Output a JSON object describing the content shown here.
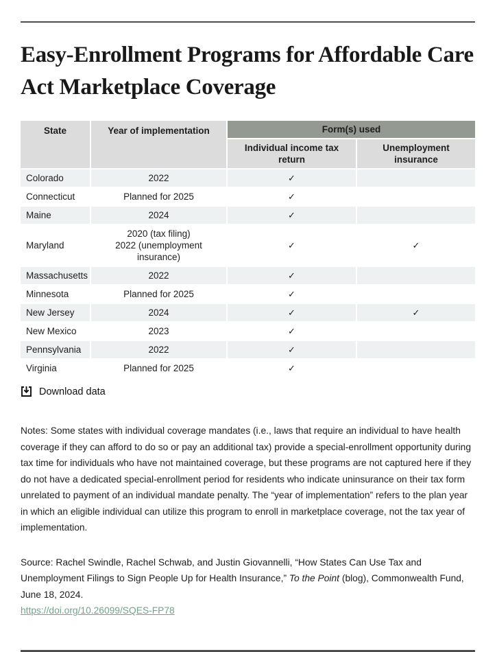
{
  "page": {
    "title": "Easy-Enrollment Programs for Affordable Care Act Marketplace Coverage"
  },
  "table": {
    "headers": {
      "state": "State",
      "year": "Year of implementation",
      "forms_used": "Form(s) used",
      "individual_tax": "Individual income tax return",
      "unemployment": "Unemployment insurance"
    },
    "check_glyph": "✓",
    "rows": [
      {
        "state": "Colorado",
        "year": "2022",
        "individual_tax": "✓",
        "unemployment": ""
      },
      {
        "state": "Connecticut",
        "year": "Planned for 2025",
        "individual_tax": "✓",
        "unemployment": ""
      },
      {
        "state": "Maine",
        "year": "2024",
        "individual_tax": "✓",
        "unemployment": ""
      },
      {
        "state": "Maryland",
        "year": "2020 (tax filing)\n2022 (unemployment insurance)",
        "individual_tax": "✓",
        "unemployment": "✓"
      },
      {
        "state": "Massachusetts",
        "year": "2022",
        "individual_tax": "✓",
        "unemployment": ""
      },
      {
        "state": "Minnesota",
        "year": "Planned for 2025",
        "individual_tax": "✓",
        "unemployment": ""
      },
      {
        "state": "New Jersey",
        "year": "2024",
        "individual_tax": "✓",
        "unemployment": "✓"
      },
      {
        "state": "New Mexico",
        "year": "2023",
        "individual_tax": "✓",
        "unemployment": ""
      },
      {
        "state": "Pennsylvania",
        "year": "2022",
        "individual_tax": "✓",
        "unemployment": ""
      },
      {
        "state": "Virginia",
        "year": "Planned for 2025",
        "individual_tax": "✓",
        "unemployment": ""
      }
    ]
  },
  "download": {
    "label": "Download data"
  },
  "notes": "Notes: Some states with individual coverage mandates (i.e., laws that require an individual to have health coverage if they can afford to do so or pay an additional tax) provide a special-enrollment opportunity during tax time for individuals who have not maintained coverage, but these programs are not captured here if they do not have a dedicated special-enrollment period for residents who indicate uninsurance on their tax form unrelated to payment of an individual mandate penalty. The “year of implementation” refers to the plan year in which an eligible individual can utilize this program to enroll in marketplace coverage, not the tax year of implementation.",
  "source": {
    "prefix": "Source: Rachel Swindle, Rachel Schwab, and Justin Giovannelli, “How States Can Use Tax and Unemployment Filings to Sign People Up for Health Insurance,” ",
    "italic": "To the Point",
    "suffix": " (blog), Commonwealth Fund, June 18, 2024. ",
    "link": "https://doi.org/10.26099/SQES-FP78"
  },
  "colors": {
    "span_header_bg": "#949a92",
    "sub_header_bg": "#dcdcdc",
    "alt_row_bg": "#eef1f1",
    "rule": "#4d4d4d",
    "link": "#6fa38c",
    "text": "#1d1d1d"
  }
}
